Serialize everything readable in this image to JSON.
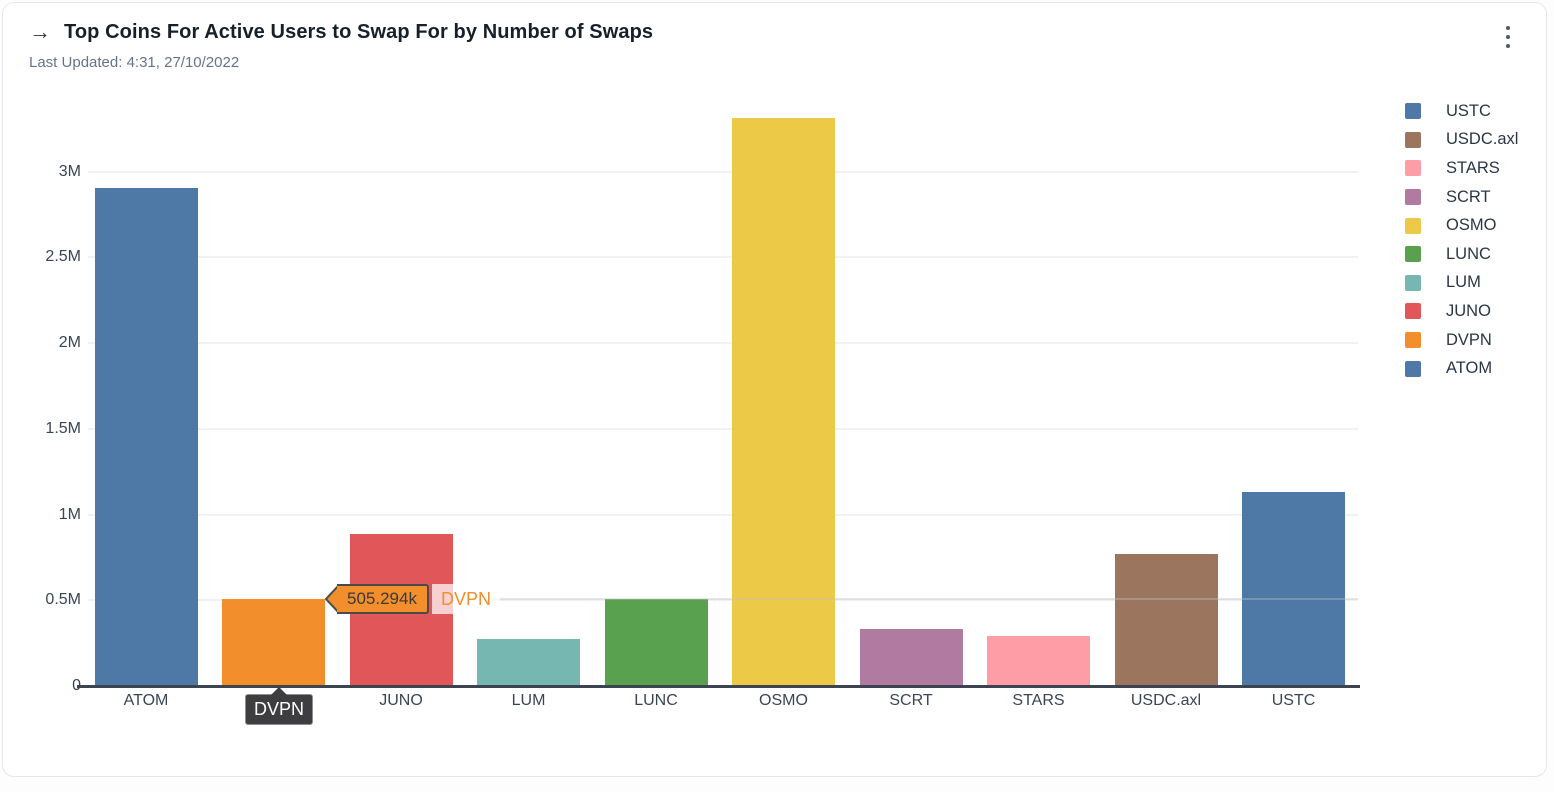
{
  "header": {
    "arrow_icon": "→",
    "title": "Top Coins For Active Users to Swap For by Number of Swaps",
    "last_updated": "Last Updated: 4:31, 27/10/2022",
    "menu_icon": "kebab-vertical"
  },
  "chart_data": {
    "type": "bar",
    "title": "Top Coins For Active Users to Swap For by Number of Swaps",
    "xlabel": "",
    "ylabel": "",
    "categories": [
      "ATOM",
      "DVPN",
      "JUNO",
      "LUM",
      "LUNC",
      "OSMO",
      "SCRT",
      "STARS",
      "USDC.axl",
      "USTC"
    ],
    "values": [
      2904000,
      505294,
      886000,
      274000,
      510000,
      3310000,
      332000,
      293000,
      770000,
      1131000
    ],
    "bar_colors": [
      "#4e79a7",
      "#f28e2b",
      "#e15759",
      "#76b7b2",
      "#59a14f",
      "#edc948",
      "#b07aa1",
      "#ff9da7",
      "#9c755f",
      "#4e79a7"
    ],
    "yticks": [
      {
        "label": "0",
        "value": 0
      },
      {
        "label": "0.5M",
        "value": 500000
      },
      {
        "label": "1M",
        "value": 1000000
      },
      {
        "label": "1.5M",
        "value": 1500000
      },
      {
        "label": "2M",
        "value": 2000000
      },
      {
        "label": "2.5M",
        "value": 2500000
      },
      {
        "label": "3M",
        "value": 3000000
      }
    ],
    "ylim": [
      0,
      3430000
    ],
    "grid": "horizontal",
    "legend_position": "right",
    "legend": [
      {
        "label": "USTC",
        "color": "#4e79a7"
      },
      {
        "label": "USDC.axl",
        "color": "#9c755f"
      },
      {
        "label": "STARS",
        "color": "#ff9da7"
      },
      {
        "label": "SCRT",
        "color": "#b07aa1"
      },
      {
        "label": "OSMO",
        "color": "#edc948"
      },
      {
        "label": "LUNC",
        "color": "#59a14f"
      },
      {
        "label": "LUM",
        "color": "#76b7b2"
      },
      {
        "label": "JUNO",
        "color": "#e15759"
      },
      {
        "label": "DVPN",
        "color": "#f28e2b"
      },
      {
        "label": "ATOM",
        "color": "#4e79a7"
      }
    ],
    "hover_tooltip": {
      "value_label": "505.294k",
      "value_raw": 505294,
      "series": "DVPN",
      "category": "DVPN",
      "accent_color": "#f28e2b"
    }
  }
}
